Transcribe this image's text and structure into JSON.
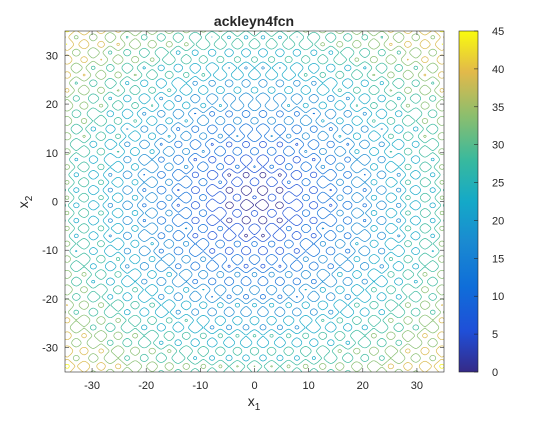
{
  "chart_data": {
    "type": "contour",
    "title": "ackleyn4fcn",
    "xlabel": "x",
    "xlabel_sub": "1",
    "ylabel": "x",
    "ylabel_sub": "2",
    "xlim": [
      -35,
      35
    ],
    "ylim": [
      -35,
      35
    ],
    "xticks": [
      -30,
      -20,
      -10,
      0,
      10,
      20,
      30
    ],
    "yticks": [
      -30,
      -20,
      -10,
      0,
      10,
      20,
      30
    ],
    "function": "ackleyn4",
    "colorbar": {
      "range": [
        0,
        45
      ],
      "ticks": [
        0,
        5,
        10,
        15,
        20,
        25,
        30,
        35,
        40,
        45
      ],
      "colormap": "parula"
    },
    "grid": false,
    "box": true
  }
}
